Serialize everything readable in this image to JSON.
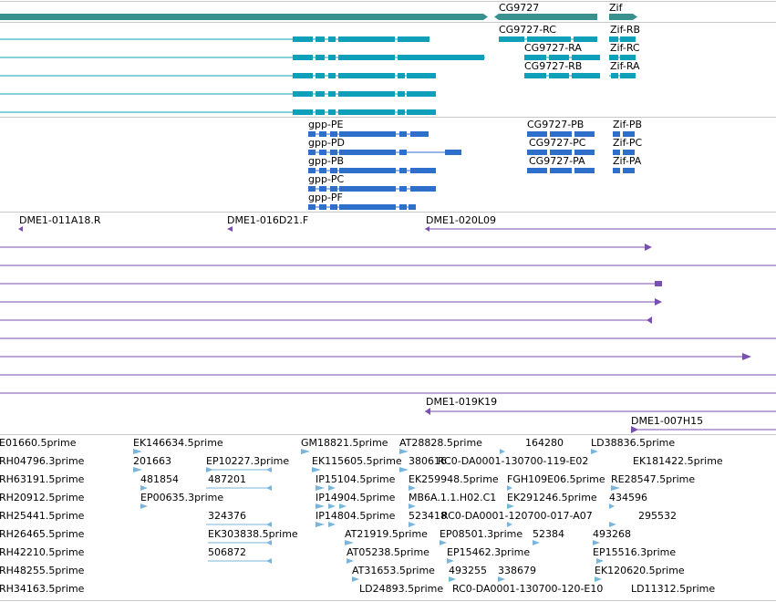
{
  "colors": {
    "gene": "#3a8f8f",
    "transcript_teal": "#0ea0b8",
    "transcript_blue": "#2f6fcc",
    "clone": "#7a4fb0",
    "est": "#7ab6dc",
    "separator": "#c8c8c8"
  },
  "gene_track": {
    "labels": [
      "CG9727",
      "Zif"
    ]
  },
  "transcript_track_a": {
    "labels": [
      "CG9727-RC",
      "Zif-RB",
      "CG9727-RA",
      "Zif-RC",
      "CG9727-RB",
      "Zif-RA"
    ]
  },
  "transcript_track_b": {
    "labels": [
      "gpp-PE",
      "gpp-PD",
      "gpp-PB",
      "gpp-PC",
      "gpp-PF",
      "CG9727-PB",
      "Zif-PB",
      "CG9727-PC",
      "Zif-PC",
      "CG9727-PA",
      "Zif-PA"
    ]
  },
  "clone_track": {
    "labels": [
      "DME1-011A18.R",
      "DME1-016D21.F",
      "DME1-020L09",
      "DME1-019K19",
      "DME1-007H15"
    ]
  },
  "est_track": {
    "labels": [
      "E01660.5prime",
      "EK146634.5prime",
      "GM18821.5prime",
      "AT28828.5prime",
      "164280",
      "LD38836.5prime",
      "RH04796.3prime",
      "201663",
      "EP10227.3prime",
      "EK115605.5prime",
      "380616",
      "RC0-DA0001-130700-119-E02",
      "EK181422.5prime",
      "RH63191.5prime",
      "481854",
      "487201",
      "IP15104.5prime",
      "EK259948.5prime",
      "FGH109E06.5prime",
      "RE28547.5prime",
      "RH20912.5prime",
      "EP00635.3prime",
      "IP14904.5prime",
      "MB6A.1.1.H02.C1",
      "EK291246.5prime",
      "434596",
      "RH25441.5prime",
      "324376",
      "IP14804.5prime",
      "523418",
      "RC0-DA0001-120700-017-A07",
      "295532",
      "RH26465.5prime",
      "EK303838.5prime",
      "AT21919.5prime",
      "EP08501.3prime",
      "52384",
      "493268",
      "RH42210.5prime",
      "506872",
      "AT05238.5prime",
      "EP15462.3prime",
      "EP15516.3prime",
      "RH48255.5prime",
      "AT31653.5prime",
      "493255",
      "338679",
      "EK120620.5prime",
      "RH34163.5prime",
      "LD24893.5prime",
      "RC0-DA0001-130700-120-E10",
      "LD11312.5prime"
    ]
  }
}
